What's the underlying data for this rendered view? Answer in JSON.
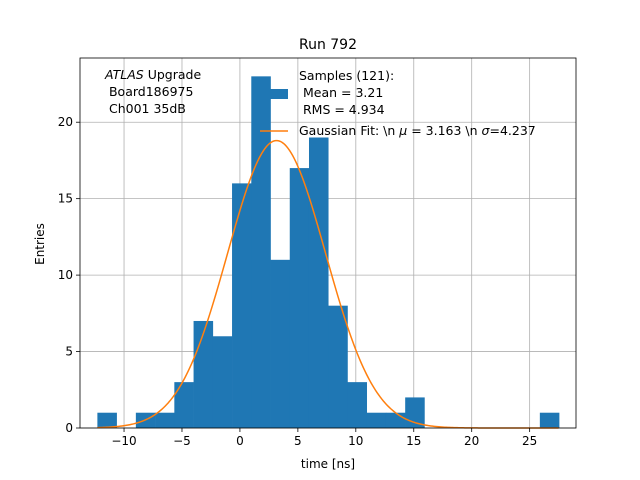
{
  "chart_data": {
    "type": "bar",
    "title": "Run 792",
    "xlabel": "time [ns]",
    "ylabel": "Entries",
    "xlim": [
      -13.8,
      29.0
    ],
    "ylim": [
      0,
      24.2
    ],
    "xticks": [
      -10,
      -5,
      0,
      5,
      10,
      15,
      20,
      25
    ],
    "yticks": [
      0,
      5,
      10,
      15,
      20
    ],
    "grid": true,
    "info_text": {
      "italic": "ATLAS",
      "line1_rest": " Upgrade",
      "line2": " Board186975",
      "line3": " Ch001 35dB"
    },
    "histogram": {
      "name": "Samples (121):",
      "name_line2": " Mean = 3.21",
      "name_line3": " RMS = 4.934",
      "color": "#1f77b4",
      "bin_width": 1.66,
      "bins": [
        {
          "left": -12.3,
          "count": 1
        },
        {
          "left": -10.64,
          "count": 0
        },
        {
          "left": -8.98,
          "count": 1
        },
        {
          "left": -7.32,
          "count": 1
        },
        {
          "left": -5.66,
          "count": 3
        },
        {
          "left": -4.0,
          "count": 7
        },
        {
          "left": -2.34,
          "count": 6
        },
        {
          "left": -0.68,
          "count": 16
        },
        {
          "left": 0.98,
          "count": 23
        },
        {
          "left": 2.64,
          "count": 11
        },
        {
          "left": 4.3,
          "count": 17
        },
        {
          "left": 5.96,
          "count": 19
        },
        {
          "left": 7.62,
          "count": 8
        },
        {
          "left": 9.28,
          "count": 3
        },
        {
          "left": 10.94,
          "count": 1
        },
        {
          "left": 12.6,
          "count": 1
        },
        {
          "left": 14.26,
          "count": 2
        },
        {
          "left": 15.92,
          "count": 0
        },
        {
          "left": 17.58,
          "count": 0
        },
        {
          "left": 19.24,
          "count": 0
        },
        {
          "left": 20.9,
          "count": 0
        },
        {
          "left": 22.56,
          "count": 0
        },
        {
          "left": 24.22,
          "count": 0
        },
        {
          "left": 25.88,
          "count": 1
        }
      ]
    },
    "fit": {
      "name": "Gaussian Fit: \\n $\\mu$ = 3.163 \\n $\\sigma$=4.237",
      "label_pre": "Gaussian Fit: \\n ",
      "label_mu": "μ",
      "label_mid": " = 3.163 \\n ",
      "label_sigma": "σ",
      "label_post": "=4.237",
      "color": "#ff7f0e",
      "mu": 3.163,
      "sigma": 4.237,
      "amplitude": 18.8,
      "x_range": [
        -12.3,
        27.5
      ]
    },
    "legend_position": "top-right"
  }
}
